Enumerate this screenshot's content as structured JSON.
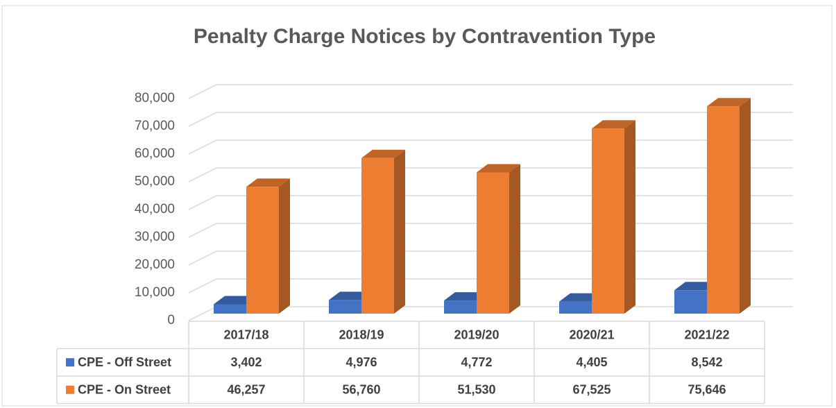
{
  "chart_data": {
    "type": "bar",
    "title": "Penalty Charge Notices by Contravention Type",
    "categories": [
      "2017/18",
      "2018/19",
      "2019/20",
      "2020/21",
      "2021/22"
    ],
    "series": [
      {
        "name": "CPE - Off Street",
        "color": "#4472c4",
        "values": [
          3402,
          4976,
          4772,
          4405,
          8542
        ],
        "value_labels": [
          "3,402",
          "4,976",
          "4,772",
          "4,405",
          "8,542"
        ]
      },
      {
        "name": "CPE - On Street",
        "color": "#ed7d31",
        "values": [
          46257,
          56760,
          51530,
          67525,
          75646
        ],
        "value_labels": [
          "46,257",
          "56,760",
          "51,530",
          "67,525",
          "75,646"
        ]
      }
    ],
    "ylim": [
      0,
      80000
    ],
    "yticks": [
      0,
      {
        "value": 10000,
        "label": "10,000"
      },
      {
        "value": 20000,
        "label": "20,000"
      },
      {
        "value": 30000,
        "label": "30,000"
      },
      {
        "value": 40000,
        "label": "40,000"
      },
      {
        "value": 50000,
        "label": "50,000"
      },
      {
        "value": 60000,
        "label": "60,000"
      },
      {
        "value": 70000,
        "label": "70,000"
      },
      {
        "value": 80000,
        "label": "80,000"
      }
    ],
    "grid": true,
    "data_table": true
  }
}
